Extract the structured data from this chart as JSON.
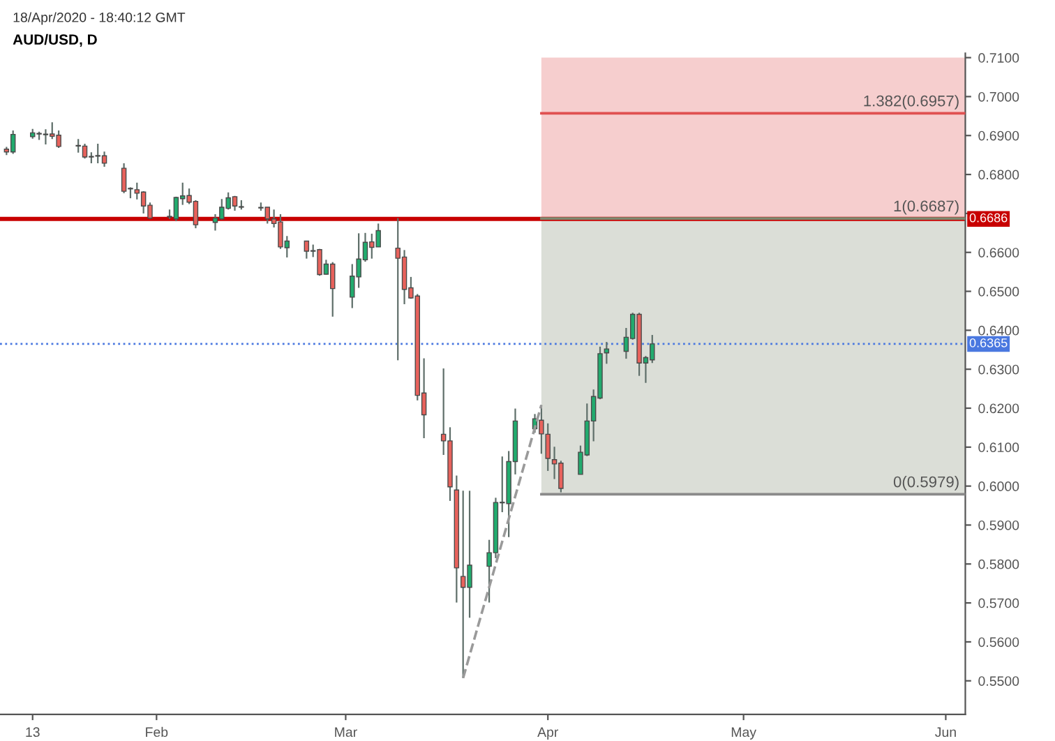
{
  "chart_data": {
    "type": "candlestick",
    "title": "AUD/USD, D",
    "subtitle": "18/Apr/2020 - 18:40:12 GMT",
    "x": [
      "2020-01-09",
      "2020-01-10",
      "2020-01-13",
      "2020-01-14",
      "2020-01-15",
      "2020-01-16",
      "2020-01-17",
      "2020-01-20",
      "2020-01-21",
      "2020-01-22",
      "2020-01-23",
      "2020-01-24",
      "2020-01-27",
      "2020-01-28",
      "2020-01-29",
      "2020-01-30",
      "2020-01-31",
      "2020-02-03",
      "2020-02-04",
      "2020-02-05",
      "2020-02-06",
      "2020-02-07",
      "2020-02-10",
      "2020-02-11",
      "2020-02-12",
      "2020-02-13",
      "2020-02-14",
      "2020-02-17",
      "2020-02-18",
      "2020-02-19",
      "2020-02-20",
      "2020-02-21",
      "2020-02-24",
      "2020-02-25",
      "2020-02-26",
      "2020-02-27",
      "2020-02-28",
      "2020-03-02",
      "2020-03-03",
      "2020-03-04",
      "2020-03-05",
      "2020-03-06",
      "2020-03-09",
      "2020-03-10",
      "2020-03-11",
      "2020-03-12",
      "2020-03-13",
      "2020-03-16",
      "2020-03-17",
      "2020-03-18",
      "2020-03-19",
      "2020-03-20",
      "2020-03-23",
      "2020-03-24",
      "2020-03-25",
      "2020-03-26",
      "2020-03-27",
      "2020-03-30",
      "2020-03-31",
      "2020-04-01",
      "2020-04-02",
      "2020-04-03",
      "2020-04-06",
      "2020-04-07",
      "2020-04-08",
      "2020-04-09",
      "2020-04-10",
      "2020-04-13",
      "2020-04-14",
      "2020-04-15",
      "2020-04-16",
      "2020-04-17"
    ],
    "ohlc": [
      [
        0.6865,
        0.6871,
        0.685,
        0.6858
      ],
      [
        0.6858,
        0.6913,
        0.6853,
        0.6903
      ],
      [
        0.6897,
        0.6917,
        0.6892,
        0.6907
      ],
      [
        0.6904,
        0.691,
        0.6889,
        0.6905
      ],
      [
        0.6902,
        0.6916,
        0.6877,
        0.6903
      ],
      [
        0.6904,
        0.6934,
        0.6891,
        0.6898
      ],
      [
        0.6901,
        0.6913,
        0.6868,
        0.6872
      ],
      [
        0.6873,
        0.6891,
        0.6856,
        0.6874
      ],
      [
        0.6873,
        0.6879,
        0.6841,
        0.6845
      ],
      [
        0.6845,
        0.6857,
        0.6829,
        0.6846
      ],
      [
        0.6847,
        0.6879,
        0.6829,
        0.6848
      ],
      [
        0.6848,
        0.6859,
        0.682,
        0.6829
      ],
      [
        0.6816,
        0.6829,
        0.6752,
        0.6757
      ],
      [
        0.6763,
        0.6767,
        0.6739,
        0.6764
      ],
      [
        0.6761,
        0.6779,
        0.6736,
        0.6752
      ],
      [
        0.6755,
        0.6757,
        0.67,
        0.6719
      ],
      [
        0.6721,
        0.6728,
        0.6686,
        0.6688
      ],
      [
        0.6692,
        0.671,
        0.6686,
        0.6691
      ],
      [
        0.6686,
        0.6743,
        0.668,
        0.6741
      ],
      [
        0.6738,
        0.6779,
        0.6722,
        0.6745
      ],
      [
        0.6746,
        0.6764,
        0.6724,
        0.6729
      ],
      [
        0.6731,
        0.6734,
        0.6662,
        0.6671
      ],
      [
        0.6677,
        0.6698,
        0.6656,
        0.6688
      ],
      [
        0.6686,
        0.6737,
        0.6684,
        0.6716
      ],
      [
        0.6713,
        0.6754,
        0.671,
        0.674
      ],
      [
        0.6743,
        0.6745,
        0.6707,
        0.6719
      ],
      [
        0.6717,
        0.6734,
        0.671,
        0.6716
      ],
      [
        0.6715,
        0.6728,
        0.6707,
        0.6714
      ],
      [
        0.6716,
        0.6716,
        0.6674,
        0.6686
      ],
      [
        0.6686,
        0.671,
        0.6664,
        0.6674
      ],
      [
        0.6678,
        0.6698,
        0.6609,
        0.6614
      ],
      [
        0.6612,
        0.6642,
        0.6587,
        0.6629
      ],
      [
        0.6629,
        0.6629,
        0.6584,
        0.6603
      ],
      [
        0.6603,
        0.662,
        0.6588,
        0.6604
      ],
      [
        0.6607,
        0.6609,
        0.654,
        0.6543
      ],
      [
        0.6544,
        0.6581,
        0.6543,
        0.657
      ],
      [
        0.657,
        0.6575,
        0.6435,
        0.6507
      ],
      [
        0.6485,
        0.657,
        0.6457,
        0.6539
      ],
      [
        0.6537,
        0.6649,
        0.6509,
        0.6583
      ],
      [
        0.6581,
        0.665,
        0.6576,
        0.6626
      ],
      [
        0.6627,
        0.6648,
        0.6584,
        0.6613
      ],
      [
        0.6614,
        0.6674,
        0.6614,
        0.6656
      ],
      [
        0.6611,
        0.6688,
        0.6323,
        0.6585
      ],
      [
        0.6588,
        0.6606,
        0.6467,
        0.6505
      ],
      [
        0.6509,
        0.6537,
        0.6481,
        0.6483
      ],
      [
        0.6488,
        0.6493,
        0.622,
        0.6233
      ],
      [
        0.6239,
        0.6328,
        0.6123,
        0.6183
      ],
      [
        0.6133,
        0.6302,
        0.608,
        0.6116
      ],
      [
        0.6116,
        0.6151,
        0.5962,
        0.5998
      ],
      [
        0.599,
        0.6027,
        0.5701,
        0.579
      ],
      [
        0.5768,
        0.5988,
        0.5507,
        0.574
      ],
      [
        0.574,
        0.5988,
        0.5662,
        0.5797
      ],
      [
        0.5794,
        0.5862,
        0.5701,
        0.5829
      ],
      [
        0.5829,
        0.597,
        0.5815,
        0.5958
      ],
      [
        0.5957,
        0.6076,
        0.5933,
        0.5958
      ],
      [
        0.5955,
        0.609,
        0.5869,
        0.6063
      ],
      [
        0.6063,
        0.6199,
        0.603,
        0.6167
      ],
      [
        0.6147,
        0.6185,
        0.6137,
        0.6173
      ],
      [
        0.6169,
        0.6208,
        0.6083,
        0.6134
      ],
      [
        0.6133,
        0.6161,
        0.6039,
        0.6071
      ],
      [
        0.6068,
        0.6101,
        0.6018,
        0.6057
      ],
      [
        0.6059,
        0.6065,
        0.5984,
        0.5994
      ],
      [
        0.603,
        0.6104,
        0.603,
        0.6087
      ],
      [
        0.608,
        0.6212,
        0.6077,
        0.6167
      ],
      [
        0.6167,
        0.6248,
        0.6115,
        0.623
      ],
      [
        0.6226,
        0.6358,
        0.6223,
        0.634
      ],
      [
        0.6342,
        0.637,
        0.6314,
        0.6352
      ],
      [
        0.6346,
        0.6406,
        0.6327,
        0.6382
      ],
      [
        0.6379,
        0.6445,
        0.6376,
        0.6441
      ],
      [
        0.6441,
        0.6445,
        0.6283,
        0.6316
      ],
      [
        0.6316,
        0.6334,
        0.6265,
        0.633
      ],
      [
        0.6324,
        0.6388,
        0.6316,
        0.6365
      ]
    ],
    "colors": [
      "#e8625c",
      "#22ab6e",
      "#22ab6e",
      "#22ab6e",
      "#22ab6e",
      "#e8625c",
      "#e8625c",
      "#22ab6e",
      "#e8625c",
      "#22ab6e",
      "#22ab6e",
      "#e8625c",
      "#e8625c",
      "#22ab6e",
      "#e8625c",
      "#e8625c",
      "#e8625c",
      "#e8625c",
      "#22ab6e",
      "#22ab6e",
      "#e8625c",
      "#e8625c",
      "#22ab6e",
      "#22ab6e",
      "#22ab6e",
      "#e8625c",
      "#e8625c",
      "#e8625c",
      "#e8625c",
      "#e8625c",
      "#e8625c",
      "#22ab6e",
      "#e8625c",
      "#22ab6e",
      "#e8625c",
      "#22ab6e",
      "#e8625c",
      "#22ab6e",
      "#22ab6e",
      "#22ab6e",
      "#e8625c",
      "#22ab6e",
      "#e8625c",
      "#e8625c",
      "#e8625c",
      "#e8625c",
      "#e8625c",
      "#e8625c",
      "#e8625c",
      "#e8625c",
      "#e8625c",
      "#22ab6e",
      "#22ab6e",
      "#22ab6e",
      "#22ab6e",
      "#22ab6e",
      "#22ab6e",
      "#22ab6e",
      "#e8625c",
      "#e8625c",
      "#e8625c",
      "#e8625c",
      "#22ab6e",
      "#22ab6e",
      "#22ab6e",
      "#22ab6e",
      "#22ab6e",
      "#22ab6e",
      "#22ab6e",
      "#e8625c",
      "#22ab6e",
      "#22ab6e"
    ],
    "series": [
      {
        "type": "line",
        "x": [
          "2020-03-31",
          "2020-06-04"
        ],
        "values": [
          0.6957,
          0.6957
        ],
        "lower": [
          0.6687,
          0.6687
        ],
        "upper": [
          0.71,
          0.71
        ],
        "color": "#e05050",
        "line_style": "solid"
      },
      {
        "type": "line",
        "x": [
          "2020-03-31",
          "2020-06-04"
        ],
        "values": [
          0.6687,
          0.6687
        ],
        "lower": [
          0.5979,
          0.5979
        ],
        "upper": [
          0.6687,
          0.6687
        ],
        "color": "#7d8a70",
        "line_style": "solid"
      },
      {
        "type": "line",
        "x": [
          "2020-03-31",
          "2020-06-04"
        ],
        "values": [
          0.5979,
          0.5979
        ],
        "color": "#8a8a8a",
        "line_style": "solid"
      },
      {
        "type": "line",
        "x": [
          "2020-03-19",
          "2020-03-31"
        ],
        "values": [
          0.5507,
          0.6208
        ],
        "color": "#9a9a9a",
        "line_style": "dashed"
      }
    ],
    "annotations": [
      {
        "text": "1.382(0.6957)",
        "x": "2020-06-04",
        "y": 0.6957
      },
      {
        "text": "1(0.6687)",
        "x": "2020-06-04",
        "y": 0.6687
      },
      {
        "text": "0(0.5979)",
        "x": "2020-06-04",
        "y": 0.5979
      }
    ],
    "xlim": [
      "2020-01-08",
      "2020-06-04"
    ],
    "xticks": [
      {
        "value": "2020-01-13",
        "label": "13"
      },
      {
        "value": "2020-02-01",
        "label": "Feb"
      },
      {
        "value": "2020-03-01",
        "label": "Mar"
      },
      {
        "value": "2020-04-01",
        "label": "Apr"
      },
      {
        "value": "2020-05-01",
        "label": "May"
      },
      {
        "value": "2020-06-01",
        "label": "Jun"
      }
    ],
    "ylim": [
      0.5414,
      0.7111
    ],
    "yticks": [
      {
        "value": 0.55,
        "label": "0.5500"
      },
      {
        "value": 0.56,
        "label": "0.5600"
      },
      {
        "value": 0.57,
        "label": "0.5700"
      },
      {
        "value": 0.58,
        "label": "0.5800"
      },
      {
        "value": 0.59,
        "label": "0.5900"
      },
      {
        "value": 0.6,
        "label": "0.6000"
      },
      {
        "value": 0.61,
        "label": "0.6100"
      },
      {
        "value": 0.62,
        "label": "0.6200"
      },
      {
        "value": 0.63,
        "label": "0.6300"
      },
      {
        "value": 0.64,
        "label": "0.6400"
      },
      {
        "value": 0.65,
        "label": "0.6500"
      },
      {
        "value": 0.66,
        "label": "0.6600"
      },
      {
        "value": 0.67,
        "label": null
      },
      {
        "value": 0.68,
        "label": "0.6800"
      },
      {
        "value": 0.69,
        "label": "0.6900"
      },
      {
        "value": 0.7,
        "label": "0.7000"
      },
      {
        "value": 0.71,
        "label": "0.7100"
      }
    ],
    "ref_lines": [
      {
        "axis": "y",
        "value": 0.6686,
        "label": "0.6686",
        "color": "#c80000",
        "line_style": "solid"
      },
      {
        "axis": "y",
        "value": 0.6365,
        "label": "0.6365",
        "color": "#4a78e0",
        "line_style": "dotted"
      }
    ],
    "grid": false,
    "legend": false
  }
}
